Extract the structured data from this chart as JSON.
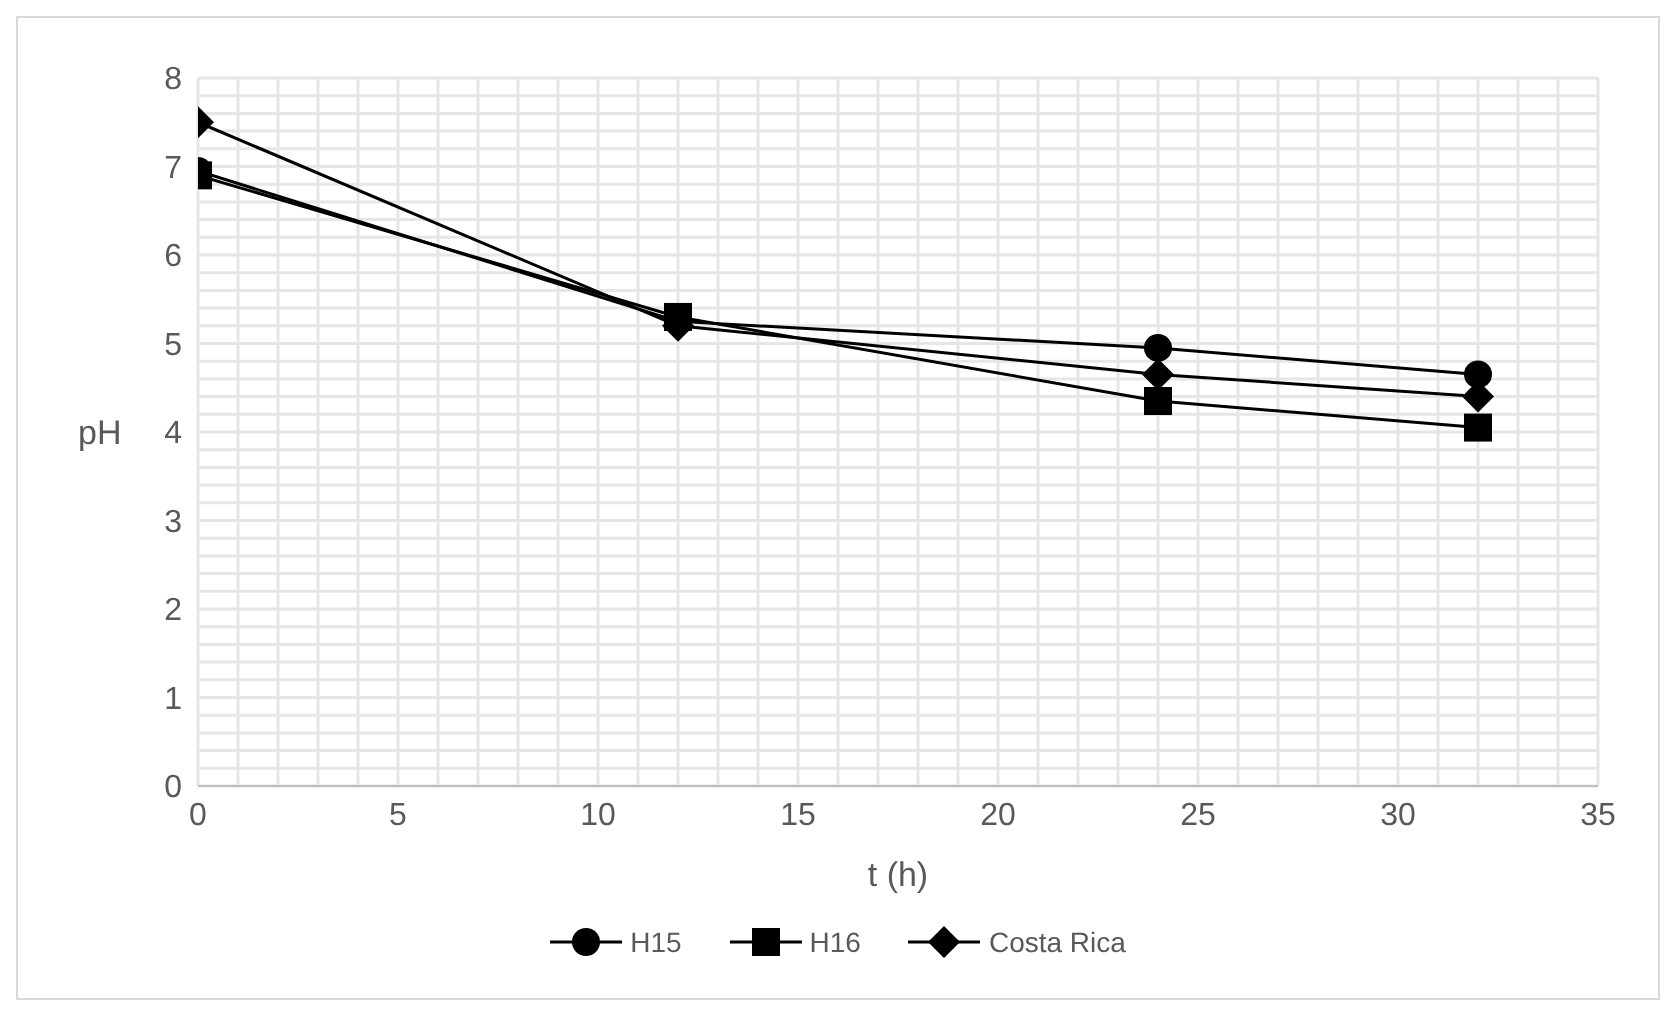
{
  "chart_data": {
    "type": "line",
    "xlabel": "t (h)",
    "ylabel": "pH",
    "x": [
      0,
      12,
      24,
      32
    ],
    "xlim": [
      0,
      35
    ],
    "xticks": [
      0,
      5,
      10,
      15,
      20,
      25,
      30,
      35
    ],
    "ylim": [
      0,
      8
    ],
    "yticks": [
      0,
      1,
      2,
      3,
      4,
      5,
      6,
      7,
      8
    ],
    "grid": true,
    "legend": "bottom",
    "series": [
      {
        "name": "H15",
        "color": "#000000",
        "marker": "circle",
        "values": [
          6.95,
          5.25,
          4.95,
          4.65
        ]
      },
      {
        "name": "H16",
        "color": "#000000",
        "marker": "square",
        "values": [
          6.9,
          5.3,
          4.35,
          4.05
        ]
      },
      {
        "name": "Costa Rica",
        "color": "#000000",
        "marker": "diamond",
        "values": [
          7.5,
          5.2,
          4.65,
          4.4
        ]
      }
    ]
  }
}
